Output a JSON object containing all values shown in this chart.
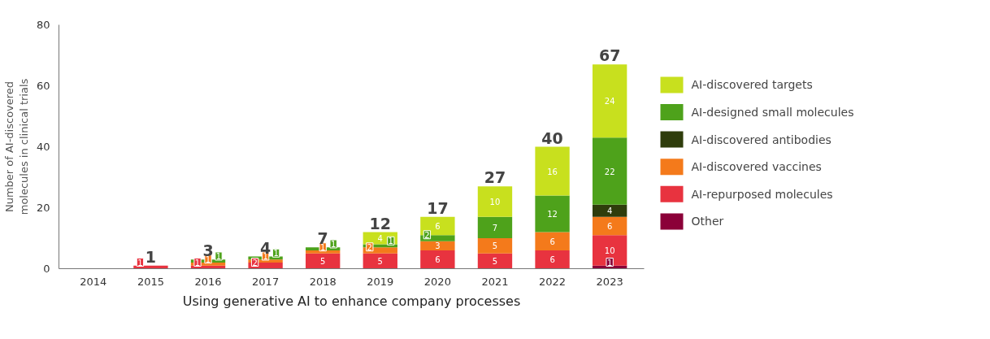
{
  "chart_data": {
    "type": "bar",
    "stacked": true,
    "ylabel": "Number of AI-discovered\nmolecules in clinical trials",
    "categories": [
      "2014",
      "2015",
      "2016",
      "2017",
      "2018",
      "2019",
      "2020",
      "2021",
      "2022",
      "2023"
    ],
    "series": [
      {
        "name": "Other",
        "color": "#8b0038",
        "values": [
          null,
          null,
          null,
          null,
          null,
          null,
          null,
          null,
          null,
          1
        ],
        "value_labels": [
          null,
          null,
          null,
          null,
          null,
          null,
          null,
          null,
          null,
          "1"
        ]
      },
      {
        "name": "AI-repurposed molecules",
        "color": "#e8333f",
        "values": [
          null,
          1,
          1,
          2,
          5,
          5,
          6,
          5,
          6,
          10
        ],
        "value_labels": [
          null,
          "1",
          "1",
          "2",
          "5",
          "5",
          "6",
          "5",
          "6",
          "10"
        ]
      },
      {
        "name": "AI-discovered vaccines",
        "color": "#f47a1b",
        "values": [
          null,
          null,
          1,
          1,
          1,
          2,
          3,
          5,
          6,
          6
        ],
        "value_labels": [
          null,
          null,
          "1",
          "1",
          "1",
          "2",
          "3",
          "5",
          "6",
          "6"
        ]
      },
      {
        "name": "AI-discovered antibodies",
        "color": "#2f3d0c",
        "values": [
          null,
          null,
          null,
          null,
          null,
          null,
          null,
          null,
          null,
          4
        ],
        "value_labels": [
          null,
          null,
          null,
          null,
          null,
          null,
          null,
          null,
          null,
          "4"
        ]
      },
      {
        "name": "AI-designed small molecules",
        "color": "#4ea21b",
        "values": [
          null,
          null,
          1,
          1,
          1,
          1,
          2,
          7,
          12,
          22
        ],
        "value_labels": [
          null,
          null,
          "1",
          "1",
          "1",
          "1",
          "2",
          "7",
          "12",
          "22"
        ]
      },
      {
        "name": "AI-discovered targets",
        "color": "#c8e01e",
        "values": [
          null,
          null,
          null,
          null,
          null,
          4,
          6,
          10,
          16,
          24
        ],
        "value_labels": [
          null,
          null,
          null,
          null,
          null,
          "4",
          "6",
          "10",
          "16",
          "24"
        ]
      }
    ],
    "totals": [
      null,
      "1",
      "3",
      "4",
      "7",
      "12",
      "17",
      "27",
      "40",
      "67"
    ],
    "ylim": [
      0,
      80
    ],
    "yticks": [
      0,
      20,
      40,
      60,
      80
    ],
    "grid": false,
    "legend": "right",
    "annotations": [
      "Using generative AI to enhance company processes"
    ]
  }
}
